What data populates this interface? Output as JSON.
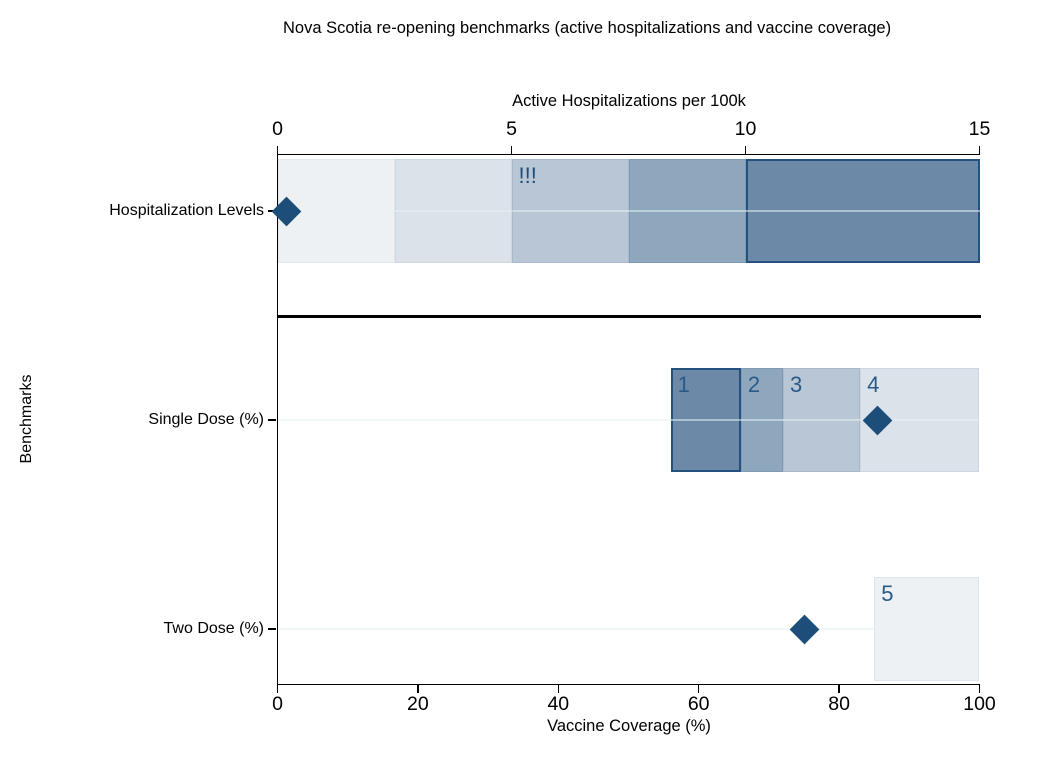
{
  "chart_data": {
    "type": "scatter",
    "title": "Nova Scotia re-opening benchmarks (active hospitalizations and vaccine coverage)",
    "top_axis": {
      "label": "Active Hospitalizations per 100k",
      "range": [
        0,
        15
      ],
      "ticks": [
        0,
        5,
        10,
        15
      ]
    },
    "bottom_axis": {
      "label": "Vaccine Coverage (%)",
      "range": [
        0,
        100
      ],
      "ticks": [
        0,
        20,
        40,
        60,
        80,
        100
      ]
    },
    "y_axis": {
      "label": "Benchmarks",
      "categories": [
        "Hospitalization Levels",
        "Single Dose (%)",
        "Two Dose (%)"
      ]
    },
    "legend": "none",
    "grid": "horizontal-category-gridlines",
    "marker_shape": "diamond",
    "marker_color": "#1d4e7a",
    "label_color": "#2a5a87",
    "rows": [
      {
        "category": "Hospitalization Levels",
        "axis": "top",
        "marker_value": 0.2,
        "bands": [
          {
            "from": 0,
            "to": 2.5,
            "fill": "#edf1f4",
            "border": "#e0e7ed",
            "label": ""
          },
          {
            "from": 2.5,
            "to": 5,
            "fill": "#dbe2ea",
            "border": "#cdd7e1",
            "label": ""
          },
          {
            "from": 5,
            "to": 7.5,
            "fill": "#b8c6d5",
            "border": "#a7b9cb",
            "label": "!!!",
            "label_color": "#1d4e7a"
          },
          {
            "from": 7.5,
            "to": 10,
            "fill": "#8fa7bd",
            "border": "#7f9bb4",
            "label": ""
          },
          {
            "from": 10,
            "to": 15,
            "fill": "#6c89a7",
            "border": "#24517d",
            "label": ""
          }
        ]
      },
      {
        "category": "Single Dose (%)",
        "axis": "bottom",
        "marker_value": 85.5,
        "bands": [
          {
            "from": 56,
            "to": 66,
            "fill": "#6c89a7",
            "border": "#24517d",
            "label": "1"
          },
          {
            "from": 66,
            "to": 72,
            "fill": "#8fa7bd",
            "border": "#7f9bb4",
            "label": "2"
          },
          {
            "from": 72,
            "to": 83,
            "fill": "#b8c6d5",
            "border": "#a7b9cb",
            "label": "3"
          },
          {
            "from": 83,
            "to": 100,
            "fill": "#dbe2ea",
            "border": "#cdd7e1",
            "label": "4"
          }
        ]
      },
      {
        "category": "Two Dose (%)",
        "axis": "bottom",
        "marker_value": 75,
        "bands": [
          {
            "from": 85,
            "to": 100,
            "fill": "#edf1f4",
            "border": "#dde4eb",
            "label": "5"
          }
        ]
      }
    ],
    "gridline_color": "#e3f1f2",
    "separator_color": "#000000",
    "background_color": "#ffffff"
  }
}
